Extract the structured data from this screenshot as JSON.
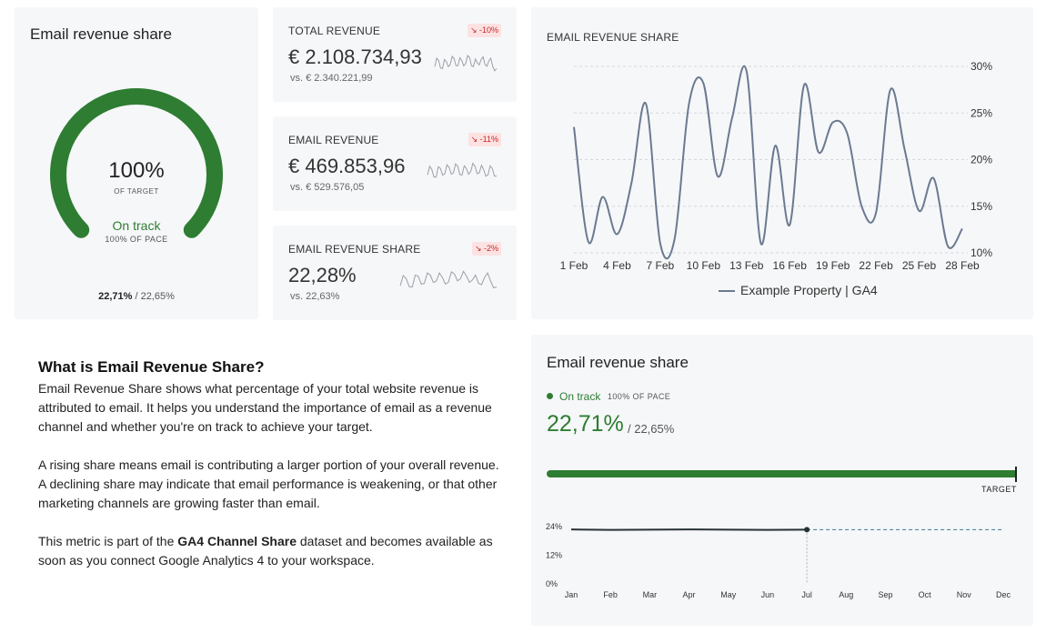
{
  "gauge": {
    "title": "Email revenue share",
    "percent": "100%",
    "percent_label": "OF TARGET",
    "status": "On track",
    "pace": "100% OF PACE",
    "current": "22,71%",
    "target": "/ 22,65%",
    "fill_fraction": 1.0,
    "color": "#2e7d32"
  },
  "kpis": [
    {
      "label": "TOTAL REVENUE",
      "badge": "↘ -10%",
      "value": "€ 2.108.734,93",
      "prev": "vs. € 2.340.221,99",
      "spark": [
        0.6,
        0.3,
        0.7,
        0.35,
        0.5,
        0.2,
        0.55,
        0.3,
        0.45,
        0.15,
        0.6,
        0.4,
        0.25,
        0.5,
        0.3,
        0.6,
        0.7
      ]
    },
    {
      "label": "EMAIL REVENUE",
      "badge": "↘ -11%",
      "value": "€ 469.853,96",
      "prev": "vs. € 529.576,05",
      "spark": [
        0.6,
        0.35,
        0.7,
        0.3,
        0.55,
        0.25,
        0.5,
        0.2,
        0.6,
        0.3,
        0.45,
        0.2,
        0.5,
        0.35,
        0.6,
        0.3,
        0.65
      ]
    },
    {
      "label": "EMAIL REVENUE SHARE",
      "badge": "↘ -2%",
      "value": "22,28%",
      "prev": "vs. 22,63%",
      "spark": [
        0.7,
        0.4,
        0.75,
        0.3,
        0.6,
        0.25,
        0.5,
        0.35,
        0.55,
        0.2,
        0.4,
        0.3,
        0.45,
        0.6,
        0.35,
        0.5,
        0.75
      ]
    }
  ],
  "badge_color": "#c62828",
  "line_chart": {
    "title": "EMAIL REVENUE SHARE",
    "legend": "Example Property | GA4"
  },
  "chart_data": {
    "type": "line",
    "x": [
      "1 Feb",
      "2 Feb",
      "3 Feb",
      "4 Feb",
      "5 Feb",
      "6 Feb",
      "7 Feb",
      "8 Feb",
      "9 Feb",
      "10 Feb",
      "11 Feb",
      "12 Feb",
      "13 Feb",
      "14 Feb",
      "15 Feb",
      "16 Feb",
      "17 Feb",
      "18 Feb",
      "19 Feb",
      "20 Feb",
      "21 Feb",
      "22 Feb",
      "23 Feb",
      "24 Feb",
      "25 Feb",
      "26 Feb",
      "27 Feb",
      "28 Feb"
    ],
    "x_tick_labels": [
      "1 Feb",
      "4 Feb",
      "7 Feb",
      "10 Feb",
      "13 Feb",
      "16 Feb",
      "19 Feb",
      "22 Feb",
      "25 Feb",
      "28 Feb"
    ],
    "series": [
      {
        "name": "Example Property | GA4",
        "values": [
          23.5,
          11.2,
          16.0,
          12.0,
          17.5,
          26.0,
          11.0,
          11.5,
          26.0,
          28.2,
          18.2,
          24.5,
          29.5,
          11.0,
          21.5,
          13.0,
          28.0,
          20.8,
          24.0,
          22.8,
          15.0,
          14.3,
          27.5,
          21.0,
          14.5,
          18.0,
          10.7,
          12.6
        ]
      }
    ],
    "y_ticks": [
      "10%",
      "15%",
      "20%",
      "25%",
      "30%"
    ],
    "ylim": [
      10,
      30
    ],
    "grid": true,
    "legend_position": "bottom",
    "line_color": "#6b7a90"
  },
  "progress": {
    "title": "Email revenue share",
    "status": "On track",
    "pace": "100% OF PACE",
    "current": "22,71%",
    "target": "/ 22,65%",
    "target_label": "TARGET",
    "fill_fraction": 1.0,
    "mini_chart": {
      "months": [
        "Jan",
        "Feb",
        "Mar",
        "Apr",
        "May",
        "Jun",
        "Jul",
        "Aug",
        "Sep",
        "Oct",
        "Nov",
        "Dec"
      ],
      "y_ticks": [
        "24%",
        "12%",
        "0%"
      ],
      "actual": [
        22.8,
        22.6,
        22.7,
        22.8,
        22.7,
        22.6,
        22.7
      ],
      "projected": 22.71,
      "ylim": [
        0,
        24
      ]
    }
  },
  "info": {
    "heading": "What is Email Revenue Share?",
    "p1": "Email Revenue Share shows what percentage of your total website revenue is attributed to email. It helps you understand the importance of email as a revenue channel and whether you're on track to achieve your target.",
    "p2": "A rising share means email is contributing a larger portion of your overall revenue. A declining share may indicate that email performance is weakening, or that other marketing channels are growing faster than email.",
    "p3_a": "This metric is part of the ",
    "p3_b": "GA4 Channel Share",
    "p3_c": " dataset and becomes available as soon as you connect Google Analytics 4 to your workspace."
  }
}
